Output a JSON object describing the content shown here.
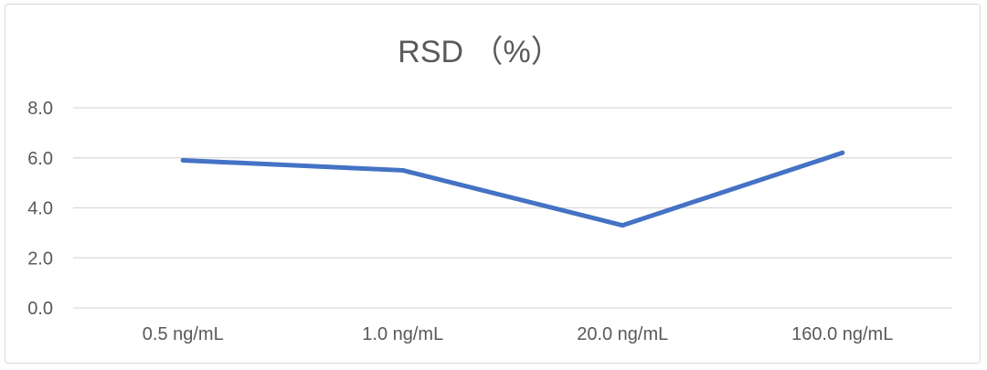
{
  "chart_data": {
    "type": "line",
    "title": "RSD （%）",
    "xlabel": "",
    "ylabel": "",
    "categories": [
      "0.5 ng/mL",
      "1.0 ng/mL",
      "20.0 ng/mL",
      "160.0 ng/mL"
    ],
    "series": [
      {
        "values": [
          5.9,
          5.5,
          3.3,
          6.2
        ],
        "color": "#4472c4"
      }
    ],
    "ylim": [
      0,
      8
    ],
    "yticks": [
      "0.0",
      "2.0",
      "4.0",
      "6.0",
      "8.0"
    ],
    "grid": true,
    "legend": "none"
  }
}
